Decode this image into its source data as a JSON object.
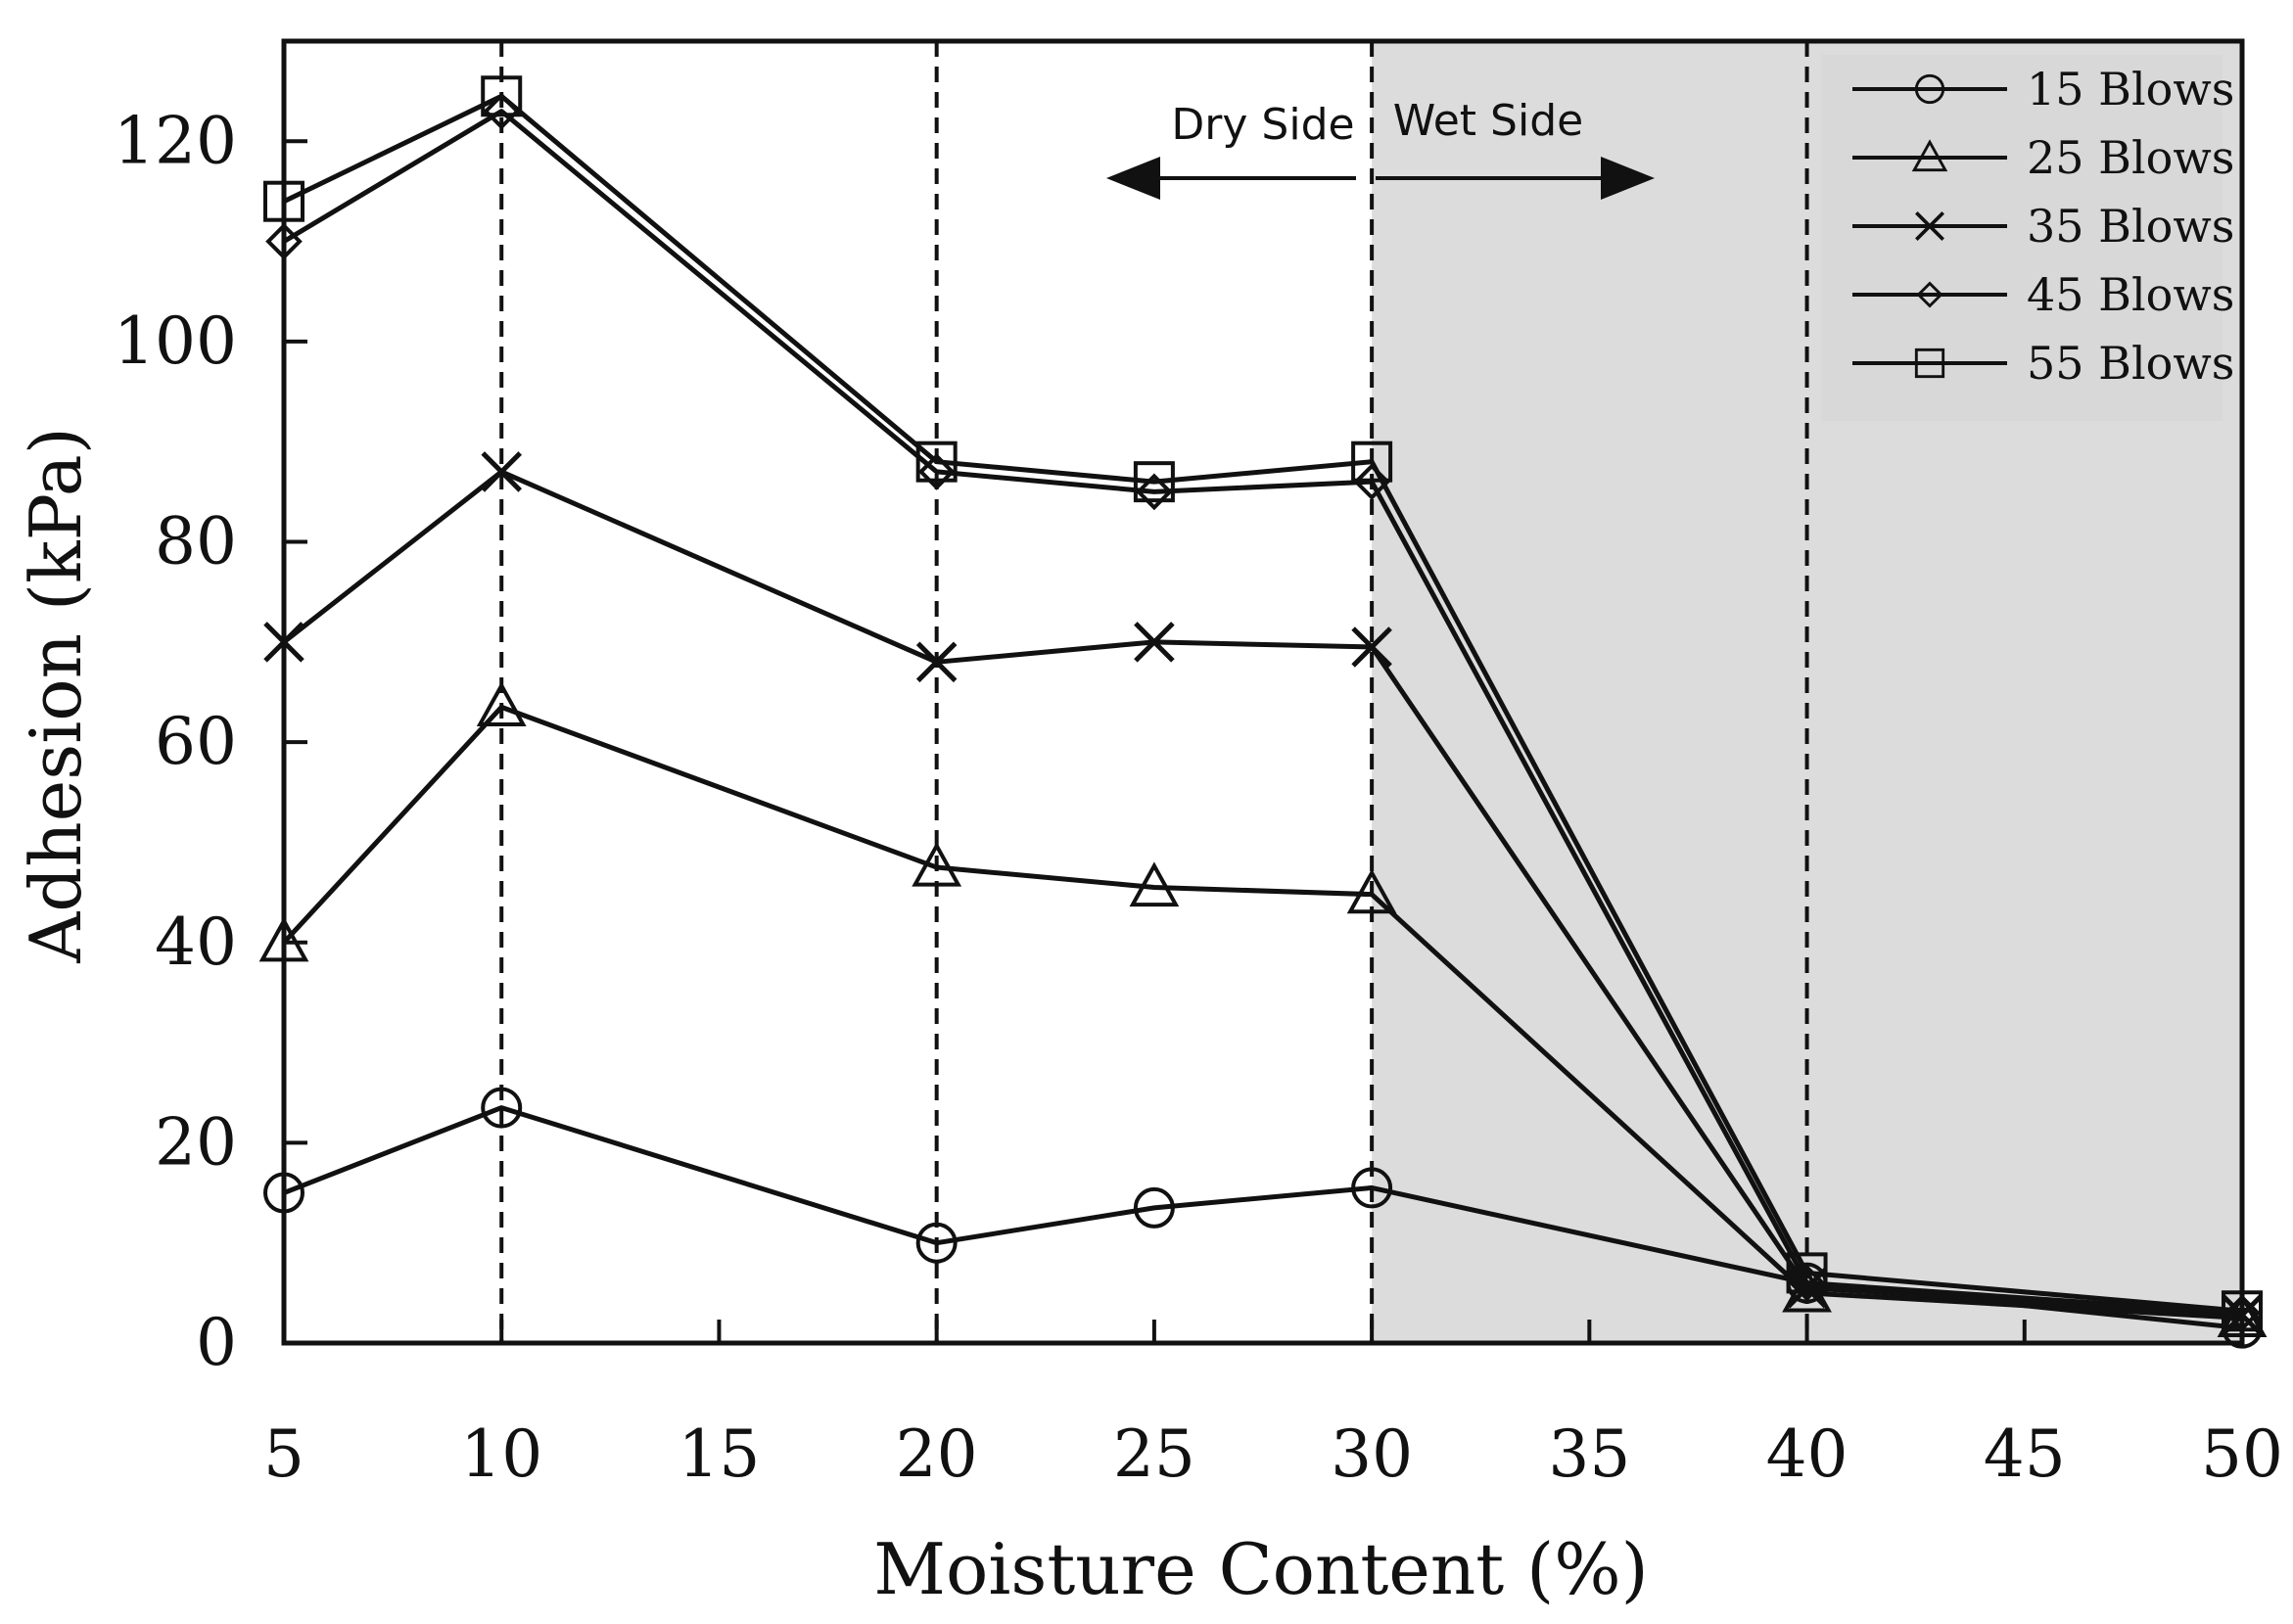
{
  "chart_data": {
    "type": "line",
    "title": "",
    "xlabel": "Moisture Content (%)",
    "ylabel": "Adhesion  (kPa)",
    "xlim": [
      5,
      50
    ],
    "ylim": [
      0,
      130
    ],
    "xticks": [
      5,
      10,
      15,
      20,
      25,
      30,
      35,
      40,
      45,
      50
    ],
    "yticks": [
      0,
      20,
      40,
      60,
      80,
      100,
      120
    ],
    "x": [
      5,
      10,
      20,
      25,
      30,
      40,
      50
    ],
    "series": [
      {
        "name": "15 Blows",
        "marker": "circle",
        "values": [
          15,
          23.5,
          10,
          13.5,
          15.5,
          6,
          1.5
        ]
      },
      {
        "name": "25 Blows",
        "marker": "triangle",
        "values": [
          40,
          63.5,
          47.5,
          45.5,
          44.8,
          5,
          2.5
        ]
      },
      {
        "name": "35 Blows",
        "marker": "x",
        "values": [
          70,
          87,
          68,
          70,
          69.5,
          5.5,
          2.8
        ]
      },
      {
        "name": "45 Blows",
        "marker": "diamond",
        "values": [
          110,
          123,
          87,
          85,
          86,
          6,
          3
        ]
      },
      {
        "name": "55 Blows",
        "marker": "square",
        "values": [
          114,
          124.5,
          88,
          86,
          88,
          7,
          3.2
        ]
      }
    ],
    "vlines": [
      10,
      20,
      30,
      40
    ],
    "shaded_region": {
      "from": 30,
      "to": 50,
      "color": "#dcdcdc"
    },
    "annotations": {
      "dry_label": "Dry Side",
      "wet_label": "Wet Side"
    },
    "legend_position": "top-right",
    "grid": false
  }
}
